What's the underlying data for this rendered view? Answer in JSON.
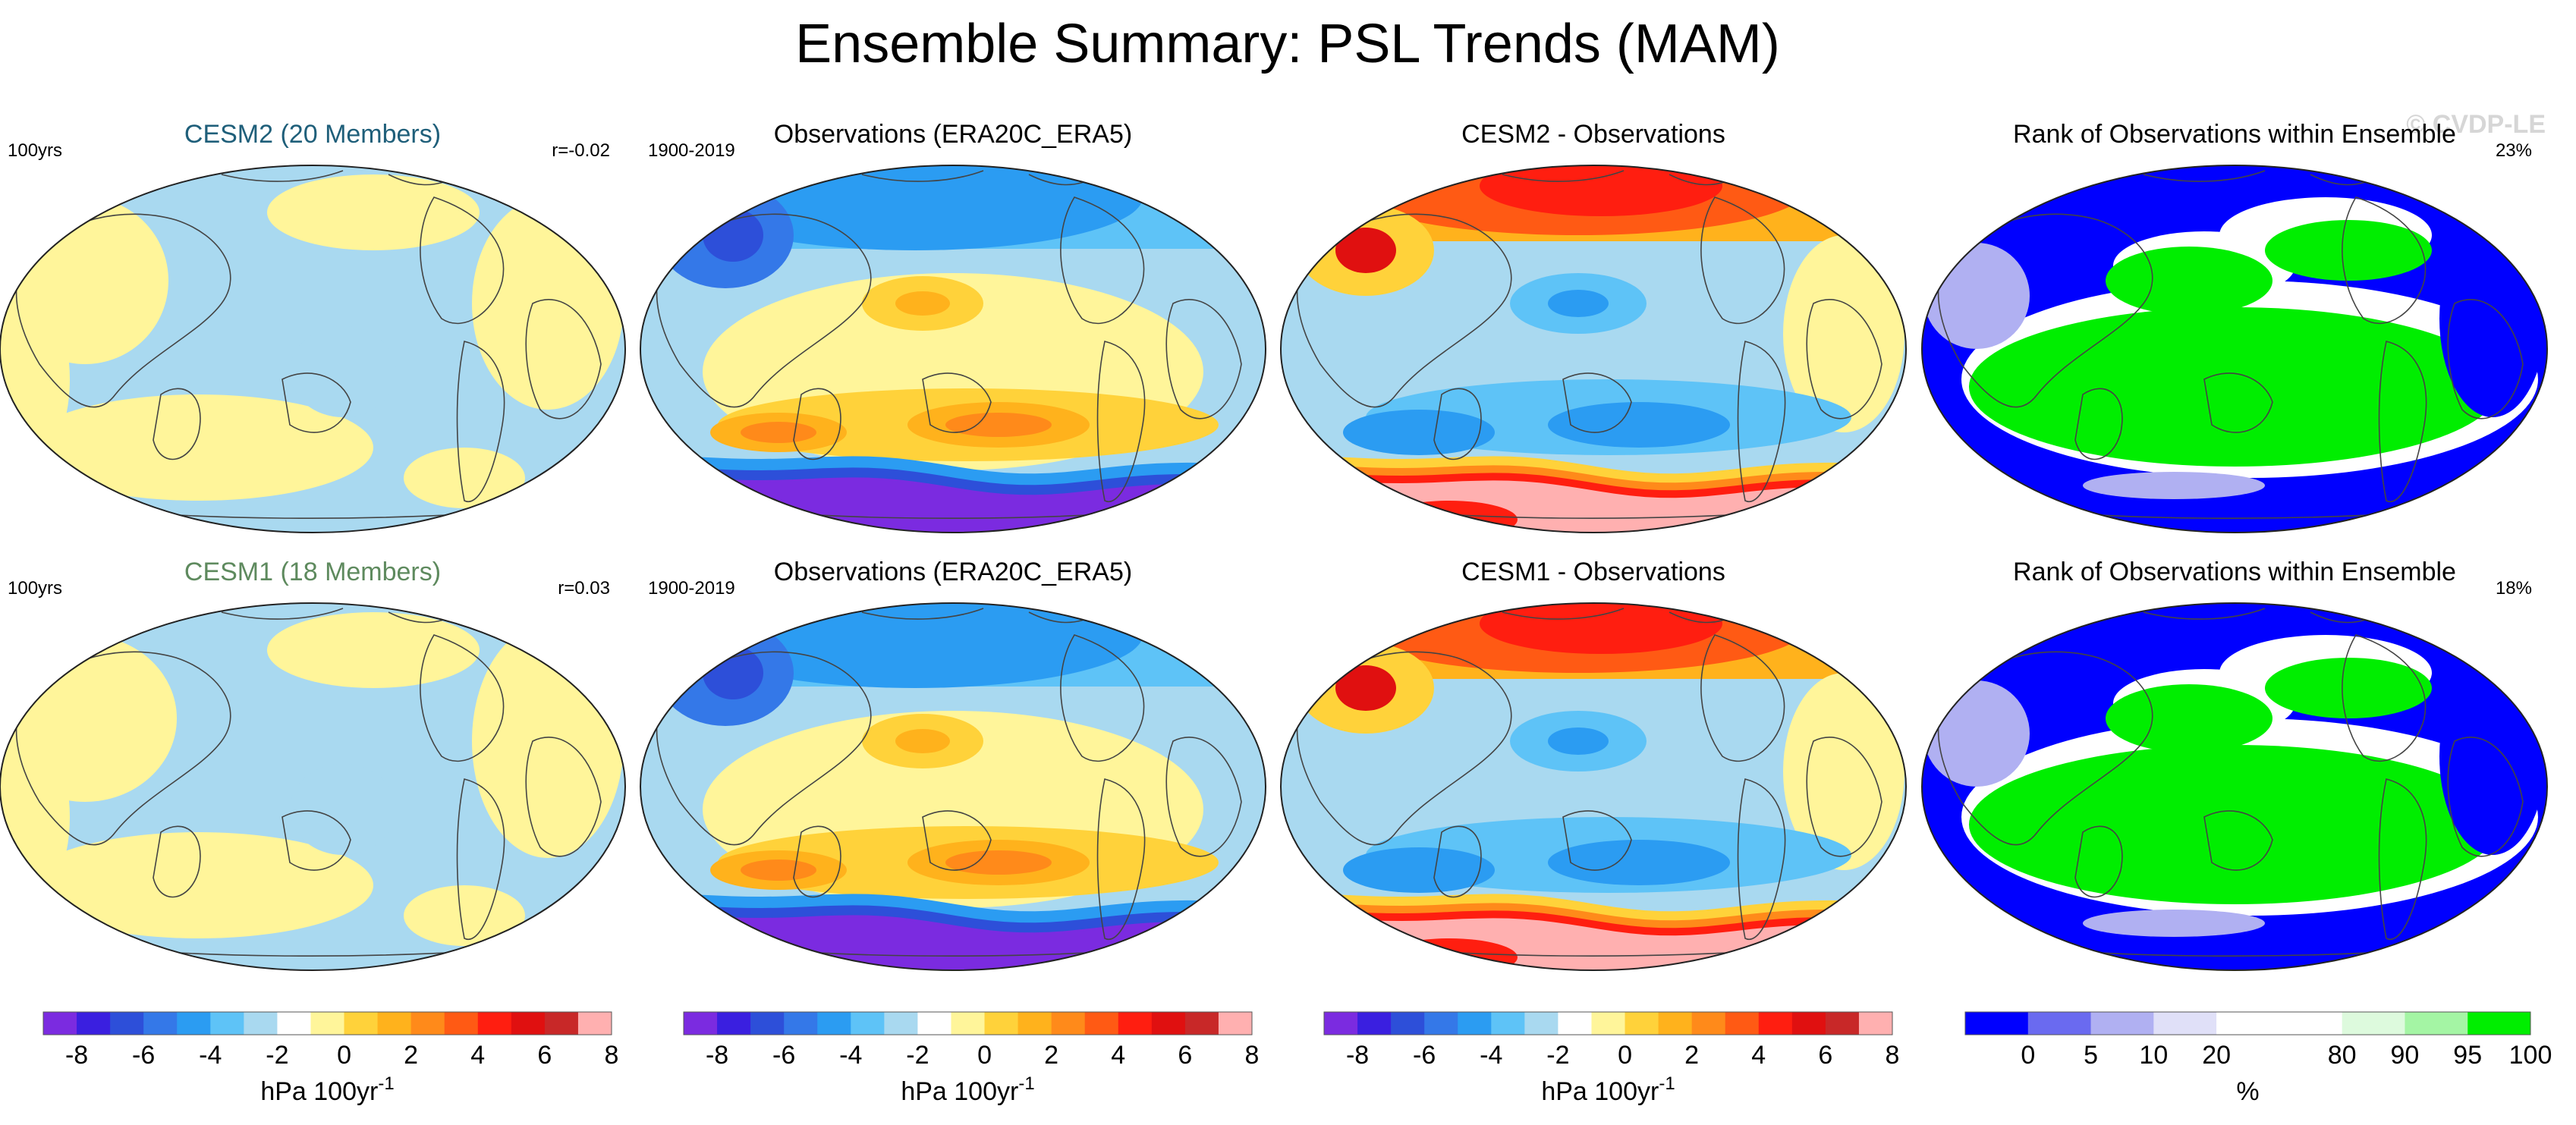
{
  "chart_data": {
    "type": "map-panel-grid",
    "title": "Ensemble Summary: PSL Trends (MAM)",
    "watermark": "© CVDP-LE",
    "rows": [
      {
        "panels": [
          {
            "title": "CESM2 (20 Members)",
            "title_color": "#1f5f7a",
            "left_label": "100yrs",
            "right_label": "r=-0.02",
            "kind": "ensemble-mean"
          },
          {
            "title": "Observations (ERA20C_ERA5)",
            "title_color": "#000000",
            "left_label": "1900-2019",
            "right_label": "",
            "kind": "observations"
          },
          {
            "title": "CESM2 - Observations",
            "title_color": "#000000",
            "left_label": "",
            "right_label": "",
            "kind": "difference"
          },
          {
            "title": "Rank of Observations within Ensemble",
            "title_color": "#000000",
            "left_label": "",
            "right_label": "23%",
            "kind": "rank"
          }
        ]
      },
      {
        "panels": [
          {
            "title": "CESM1 (18 Members)",
            "title_color": "#5e8a5e",
            "left_label": "100yrs",
            "right_label": "r=0.03",
            "kind": "ensemble-mean"
          },
          {
            "title": "Observations (ERA20C_ERA5)",
            "title_color": "#000000",
            "left_label": "1900-2019",
            "right_label": "",
            "kind": "observations"
          },
          {
            "title": "CESM1 - Observations",
            "title_color": "#000000",
            "left_label": "",
            "right_label": "",
            "kind": "difference"
          },
          {
            "title": "Rank of Observations within Ensemble",
            "title_color": "#000000",
            "left_label": "",
            "right_label": "18%",
            "kind": "rank"
          }
        ]
      }
    ],
    "trend_colorbar": {
      "colors": [
        "#7b2be0",
        "#3a1fe0",
        "#2d4fd9",
        "#3478e8",
        "#2b9cf2",
        "#5ec3f7",
        "#a9d9f0",
        "#ffffff",
        "#fff59a",
        "#ffd23a",
        "#ffb21c",
        "#ff8a1a",
        "#ff5a14",
        "#ff1e10",
        "#e01010",
        "#c82828",
        "#ffb0b0"
      ],
      "tick_labels": [
        "-8",
        "-6",
        "-4",
        "-2",
        "0",
        "2",
        "4",
        "6",
        "8"
      ],
      "units_label": "hPa 100yr",
      "units_superscript": "-1"
    },
    "rank_colorbar": {
      "colors": [
        "#0000ff",
        "#6a6af0",
        "#b0b0f2",
        "#e0e0f8",
        "#ffffff",
        "#ffffff",
        "#ddfadd",
        "#a4f5a4",
        "#00ee00"
      ],
      "tick_labels": [
        "0",
        "5",
        "10",
        "20",
        "80",
        "90",
        "95",
        "100"
      ],
      "units_label": "%"
    },
    "colors": {
      "land_outline": "#444444",
      "map_border": "#222222"
    }
  }
}
